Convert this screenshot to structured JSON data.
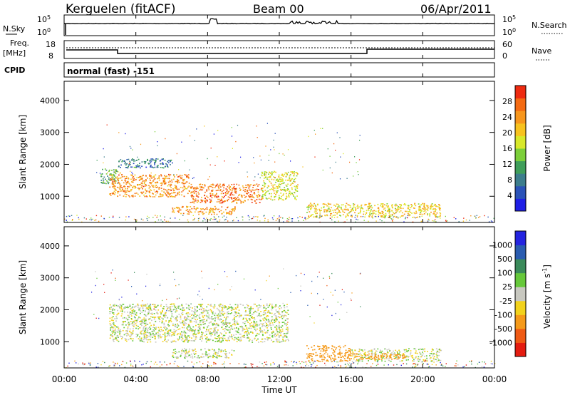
{
  "header": {
    "station": "Kerguelen (fitACF)",
    "beam": "Beam 00",
    "date": "06/Apr/2011"
  },
  "nsky_panel": {
    "left_label": "N.Sky",
    "left_ticks": [
      "10^5",
      "10^0"
    ],
    "right_label": "N.Search",
    "right_ticks": [
      "10^5",
      "10^0"
    ]
  },
  "freq_panel": {
    "left_label_1": "Freq.",
    "left_label_2": "[MHz]",
    "left_ticks": [
      "18",
      "8"
    ],
    "right_label": "Nave",
    "right_ticks": [
      "60",
      "0"
    ]
  },
  "cpid_panel": {
    "label": "CPID",
    "mode": "normal (fast) -151"
  },
  "time_axis": {
    "label": "Time UT",
    "ticks": [
      "00:00",
      "04:00",
      "08:00",
      "12:00",
      "16:00",
      "20:00",
      "00:00"
    ]
  },
  "colors": {
    "power_scale": [
      "#1f1fe6",
      "#2a52b8",
      "#3c7d8c",
      "#3f9e5a",
      "#7ccf3a",
      "#d8e82a",
      "#f7c21e",
      "#f7961c",
      "#f46a12",
      "#ee2a10"
    ],
    "velocity_scale": [
      "#2424e0",
      "#2a5cb0",
      "#3a8a5a",
      "#66c83a",
      "#c8c8c0",
      "#f2d21c",
      "#f59a1a",
      "#ef5a14",
      "#e41c10"
    ]
  },
  "chart_data": [
    {
      "type": "heatmap",
      "ylabel": "Slant Range [km]",
      "xlabel": "Time UT",
      "x_range_hours": [
        0,
        24
      ],
      "ylim": [
        180,
        4600
      ],
      "yticks": [
        1000,
        2000,
        3000,
        4000
      ],
      "colorbar_label": "Power [dB]",
      "colorbar_ticks": [
        4,
        8,
        12,
        16,
        20,
        24,
        28
      ],
      "colorbar_range": [
        0,
        32
      ],
      "regions": [
        {
          "t0": 2.0,
          "t1": 3.0,
          "r0": 1400,
          "r1": 1900,
          "value": 12
        },
        {
          "t0": 2.5,
          "t1": 7.0,
          "r0": 1000,
          "r1": 1700,
          "value": 24
        },
        {
          "t0": 7.0,
          "t1": 11.0,
          "r0": 800,
          "r1": 1400,
          "value": 26
        },
        {
          "t0": 11.0,
          "t1": 13.0,
          "r0": 900,
          "r1": 1800,
          "value": 18
        },
        {
          "t0": 6.0,
          "t1": 9.5,
          "r0": 450,
          "r1": 700,
          "value": 24
        },
        {
          "t0": 13.5,
          "t1": 21.0,
          "r0": 350,
          "r1": 800,
          "value": 20
        },
        {
          "t0": 3.0,
          "t1": 6.0,
          "r0": 1900,
          "r1": 2200,
          "value": 8
        }
      ]
    },
    {
      "type": "heatmap",
      "ylabel": "Slant Range [km]",
      "xlabel": "Time UT",
      "x_range_hours": [
        0,
        24
      ],
      "ylim": [
        180,
        4600
      ],
      "yticks": [
        1000,
        2000,
        3000,
        4000
      ],
      "colorbar_label": "Velocity [m s^-1]",
      "colorbar_tick_labels": [
        "1000",
        "500",
        "100",
        "25",
        "-25",
        "-100",
        "-500",
        "-1000"
      ],
      "regions": [
        {
          "t0": 2.5,
          "t1": 12.5,
          "r0": 1000,
          "r1": 2200,
          "value": 0
        },
        {
          "t0": 6.0,
          "t1": 9.5,
          "r0": 500,
          "r1": 800,
          "value": 0
        },
        {
          "t0": 13.5,
          "t1": 16.0,
          "r0": 400,
          "r1": 900,
          "value": -300
        },
        {
          "t0": 16.0,
          "t1": 21.0,
          "r0": 400,
          "r1": 800,
          "value": 0
        },
        {
          "t0": 16.0,
          "t1": 19.0,
          "r0": 450,
          "r1": 650,
          "value": -200
        }
      ]
    }
  ]
}
